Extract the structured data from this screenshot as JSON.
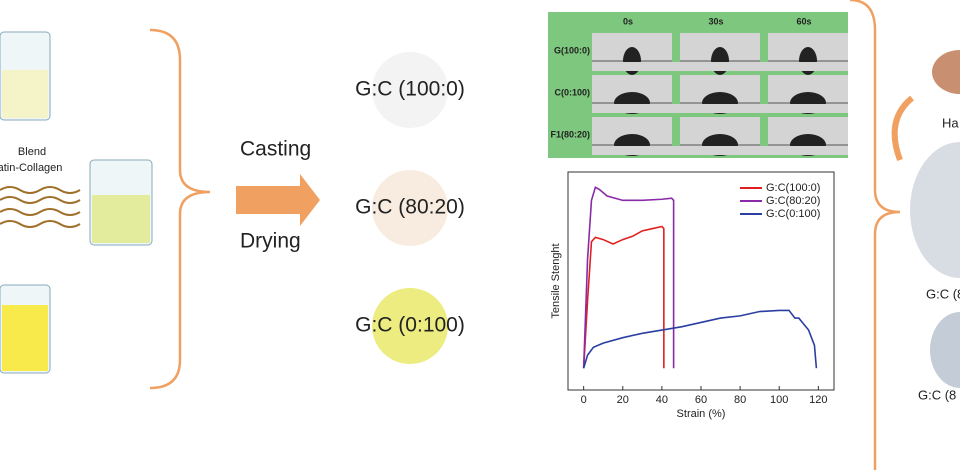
{
  "diagram": {
    "blend_label": [
      "Blend",
      "atin-Collagen"
    ],
    "process": [
      "Casting",
      "Drying"
    ],
    "films": [
      "G:C (100:0)",
      "G:C (80:20)",
      "G:C (0:100)"
    ],
    "contact_angle": {
      "times": [
        "0s",
        "30s",
        "60s"
      ],
      "samples": [
        "G(100:0)",
        "C(0:100)",
        "F1(80:20)"
      ]
    },
    "right_labels": [
      "Ha",
      "G:C (8",
      "G:C (8"
    ]
  },
  "chart_data": {
    "type": "line",
    "xlabel": "Strain (%)",
    "ylabel": "Tensile Stenght",
    "xlim": [
      -8,
      128
    ],
    "ylim": [
      -10,
      90
    ],
    "xticks": [
      0,
      20,
      40,
      60,
      80,
      100,
      120
    ],
    "legend": "upper right",
    "series": [
      {
        "name": "G:C(100:0)",
        "color": "#e02020",
        "x": [
          0,
          2,
          4,
          6,
          10,
          15,
          20,
          25,
          30,
          35,
          40,
          41,
          41
        ],
        "values": [
          0,
          31,
          58,
          60,
          59,
          57,
          59,
          60.5,
          63,
          64,
          65,
          64,
          0
        ]
      },
      {
        "name": "G:C(80:20)",
        "color": "#8a2aa8",
        "x": [
          0,
          2,
          4,
          6,
          8,
          12,
          20,
          30,
          40,
          45,
          46,
          46
        ],
        "values": [
          0,
          50,
          77,
          83,
          82,
          79,
          77,
          77,
          77.5,
          78,
          77,
          0
        ]
      },
      {
        "name": "G:C(0:100)",
        "color": "#2a3fa0",
        "x": [
          0,
          2,
          5,
          10,
          20,
          30,
          40,
          50,
          60,
          70,
          80,
          90,
          100,
          105,
          108,
          110,
          115,
          118,
          119
        ],
        "values": [
          0,
          6,
          9.6,
          11.5,
          14,
          16,
          17.5,
          19,
          21,
          23,
          24,
          26,
          26.5,
          26.5,
          23,
          23,
          17.5,
          10.5,
          0
        ]
      }
    ]
  }
}
